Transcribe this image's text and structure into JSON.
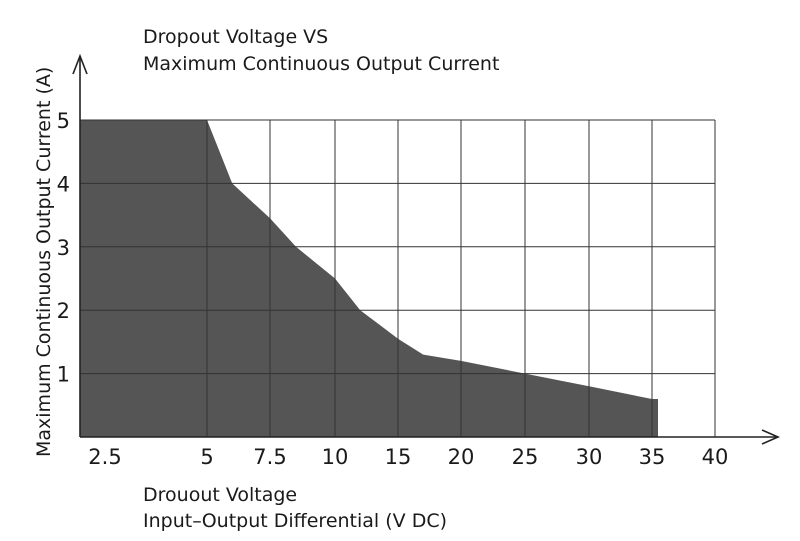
{
  "chart_data": {
    "type": "area",
    "title_lines": [
      "Dropout Voltage VS",
      "Maximum Continuous Output Current"
    ],
    "xlabel_lines": [
      "Drouout Voltage",
      "Input–Output Differential (V DC)"
    ],
    "ylabel": "Maximum Continuous Output Current (A)",
    "x_tick_labels": [
      "2.5",
      "5",
      "7.5",
      "10",
      "15",
      "20",
      "25",
      "30",
      "35",
      "40"
    ],
    "y_tick_labels": [
      "1",
      "2",
      "3",
      "4",
      "5"
    ],
    "ylim": [
      0,
      5
    ],
    "grid": true,
    "series": [
      {
        "x": [
          2.5,
          5,
          6,
          7.5,
          8.5,
          10,
          12,
          15,
          17,
          20,
          25,
          30,
          35
        ],
        "y": [
          5,
          5,
          4,
          3.45,
          3,
          2.5,
          2,
          1.55,
          1.3,
          1.2,
          1,
          0.8,
          0.6
        ]
      }
    ],
    "colors": {
      "fill": "#555555",
      "grid": "#333333",
      "axis": "#222222",
      "text": "#1a1a1a"
    }
  }
}
